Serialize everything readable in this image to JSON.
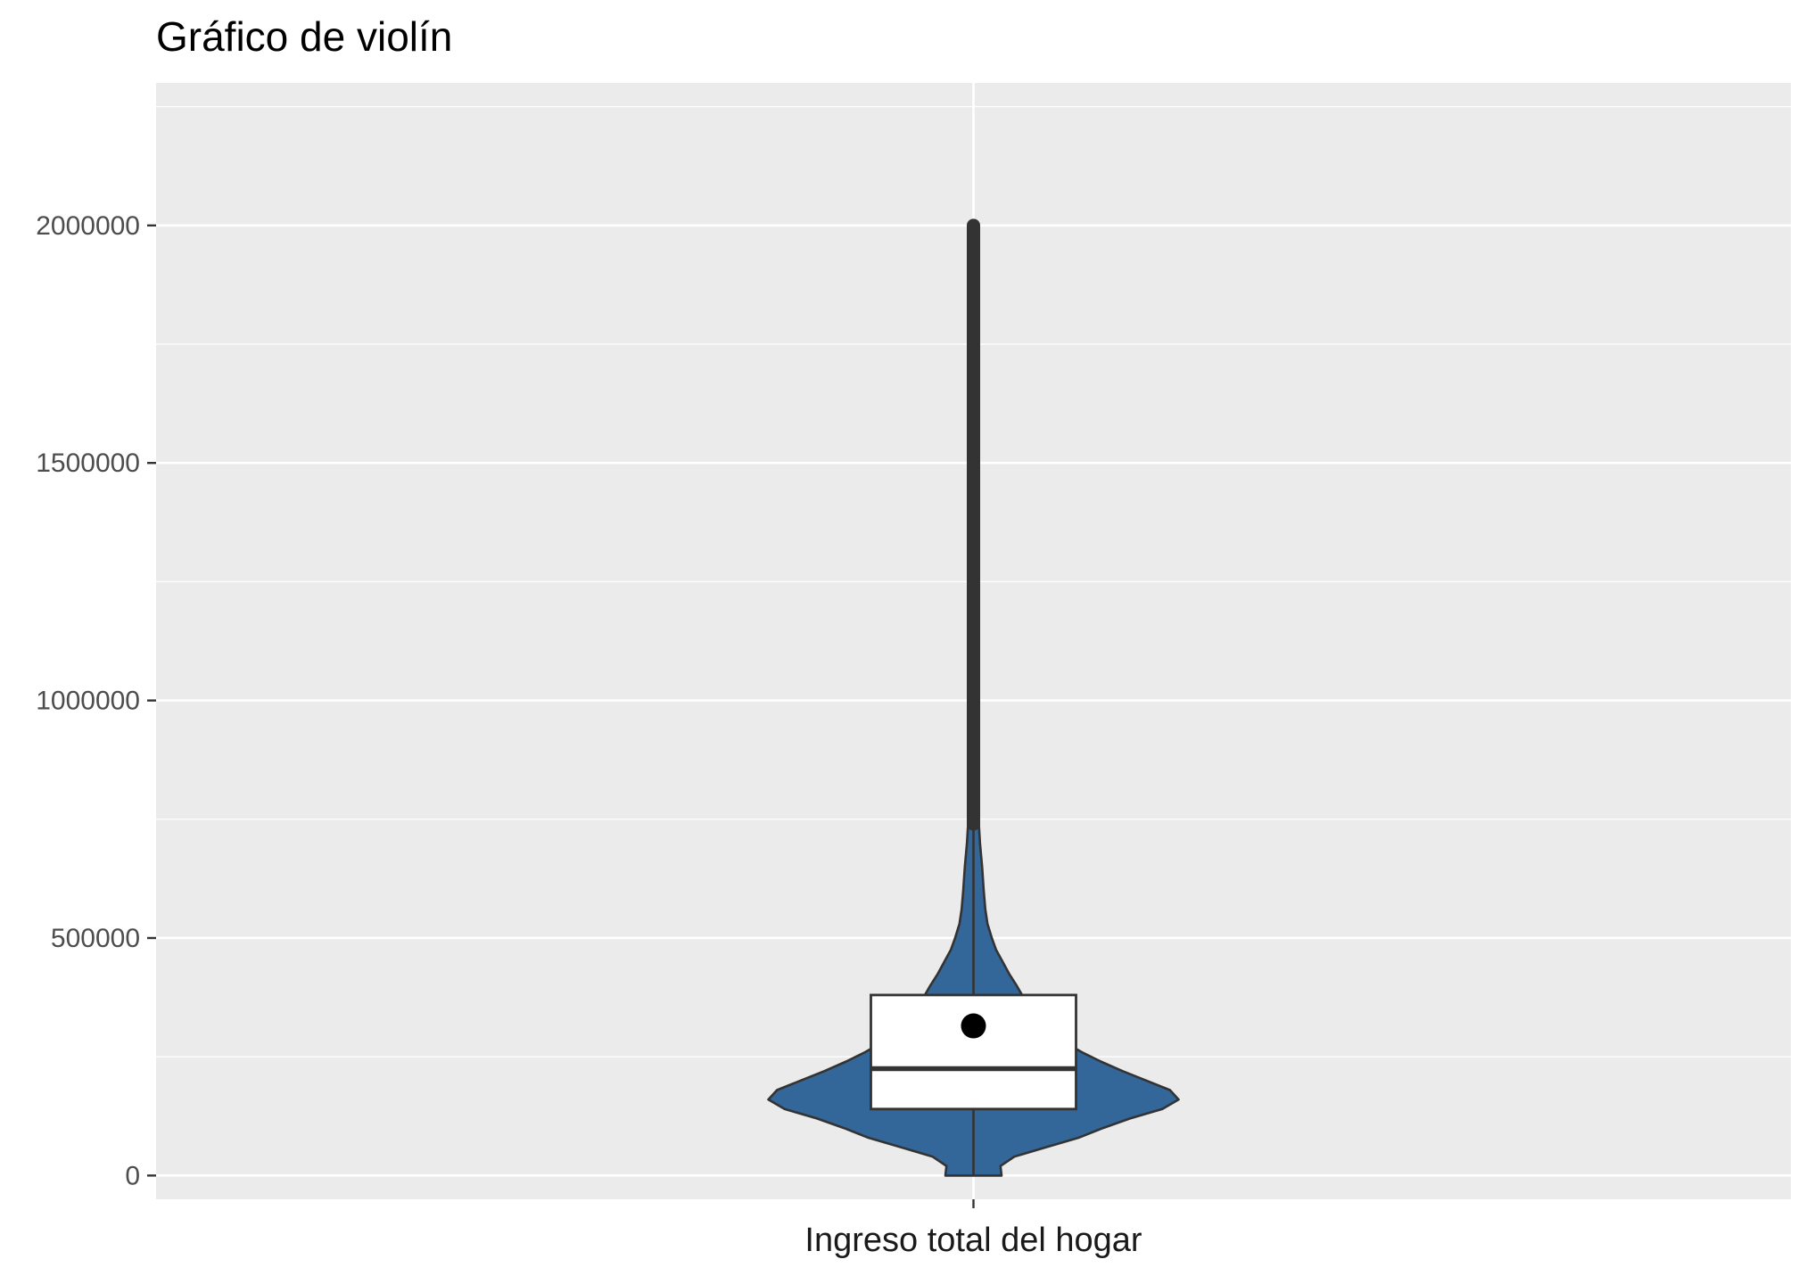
{
  "chart_data": {
    "type": "violin",
    "title": "Gráfico de violín",
    "xlabel": "",
    "ylabel": "",
    "categories": [
      "Ingreso total del hogar"
    ],
    "ylim": [
      -50000,
      2300000
    ],
    "yticks": [
      0,
      500000,
      1000000,
      1500000,
      2000000
    ],
    "ytick_labels": [
      "0",
      "500000",
      "1000000",
      "1500000",
      "2000000"
    ],
    "grid": true,
    "legend": "none",
    "colors": {
      "panel": "#EBEBEB",
      "grid": "#FFFFFF",
      "violin_fill": "#336699",
      "outline": "#333333",
      "box_fill": "#FFFFFF",
      "mean_point": "#000000"
    },
    "violin": {
      "min": 0,
      "max": 2000000,
      "density": [
        [
          0,
          0.26
        ],
        [
          20000,
          0.25
        ],
        [
          40000,
          0.38
        ],
        [
          60000,
          0.68
        ],
        [
          80000,
          0.98
        ],
        [
          100000,
          1.2
        ],
        [
          120000,
          1.45
        ],
        [
          140000,
          1.75
        ],
        [
          160000,
          1.9
        ],
        [
          180000,
          1.82
        ],
        [
          200000,
          1.6
        ],
        [
          220000,
          1.38
        ],
        [
          240000,
          1.18
        ],
        [
          260000,
          1.0
        ],
        [
          280000,
          0.85
        ],
        [
          300000,
          0.72
        ],
        [
          320000,
          0.64
        ],
        [
          340000,
          0.56
        ],
        [
          360000,
          0.5
        ],
        [
          380000,
          0.45
        ],
        [
          400000,
          0.4
        ],
        [
          425000,
          0.33
        ],
        [
          450000,
          0.27
        ],
        [
          475000,
          0.21
        ],
        [
          500000,
          0.17
        ],
        [
          530000,
          0.13
        ],
        [
          560000,
          0.11
        ],
        [
          600000,
          0.095
        ],
        [
          650000,
          0.08
        ],
        [
          700000,
          0.06
        ],
        [
          760000,
          0.045
        ],
        [
          820000,
          0.03
        ],
        [
          900000,
          0.018
        ],
        [
          1000000,
          0.01
        ],
        [
          1100000,
          0.004
        ],
        [
          1400000,
          0.002
        ],
        [
          2000000,
          0.0
        ]
      ]
    },
    "boxplot": {
      "q1": 140000,
      "median": 225000,
      "q3": 380000,
      "whisker_low": 0,
      "whisker_high": 740000,
      "outliers_from": 740000,
      "outliers_to": 2000000
    },
    "mean": 315000
  }
}
